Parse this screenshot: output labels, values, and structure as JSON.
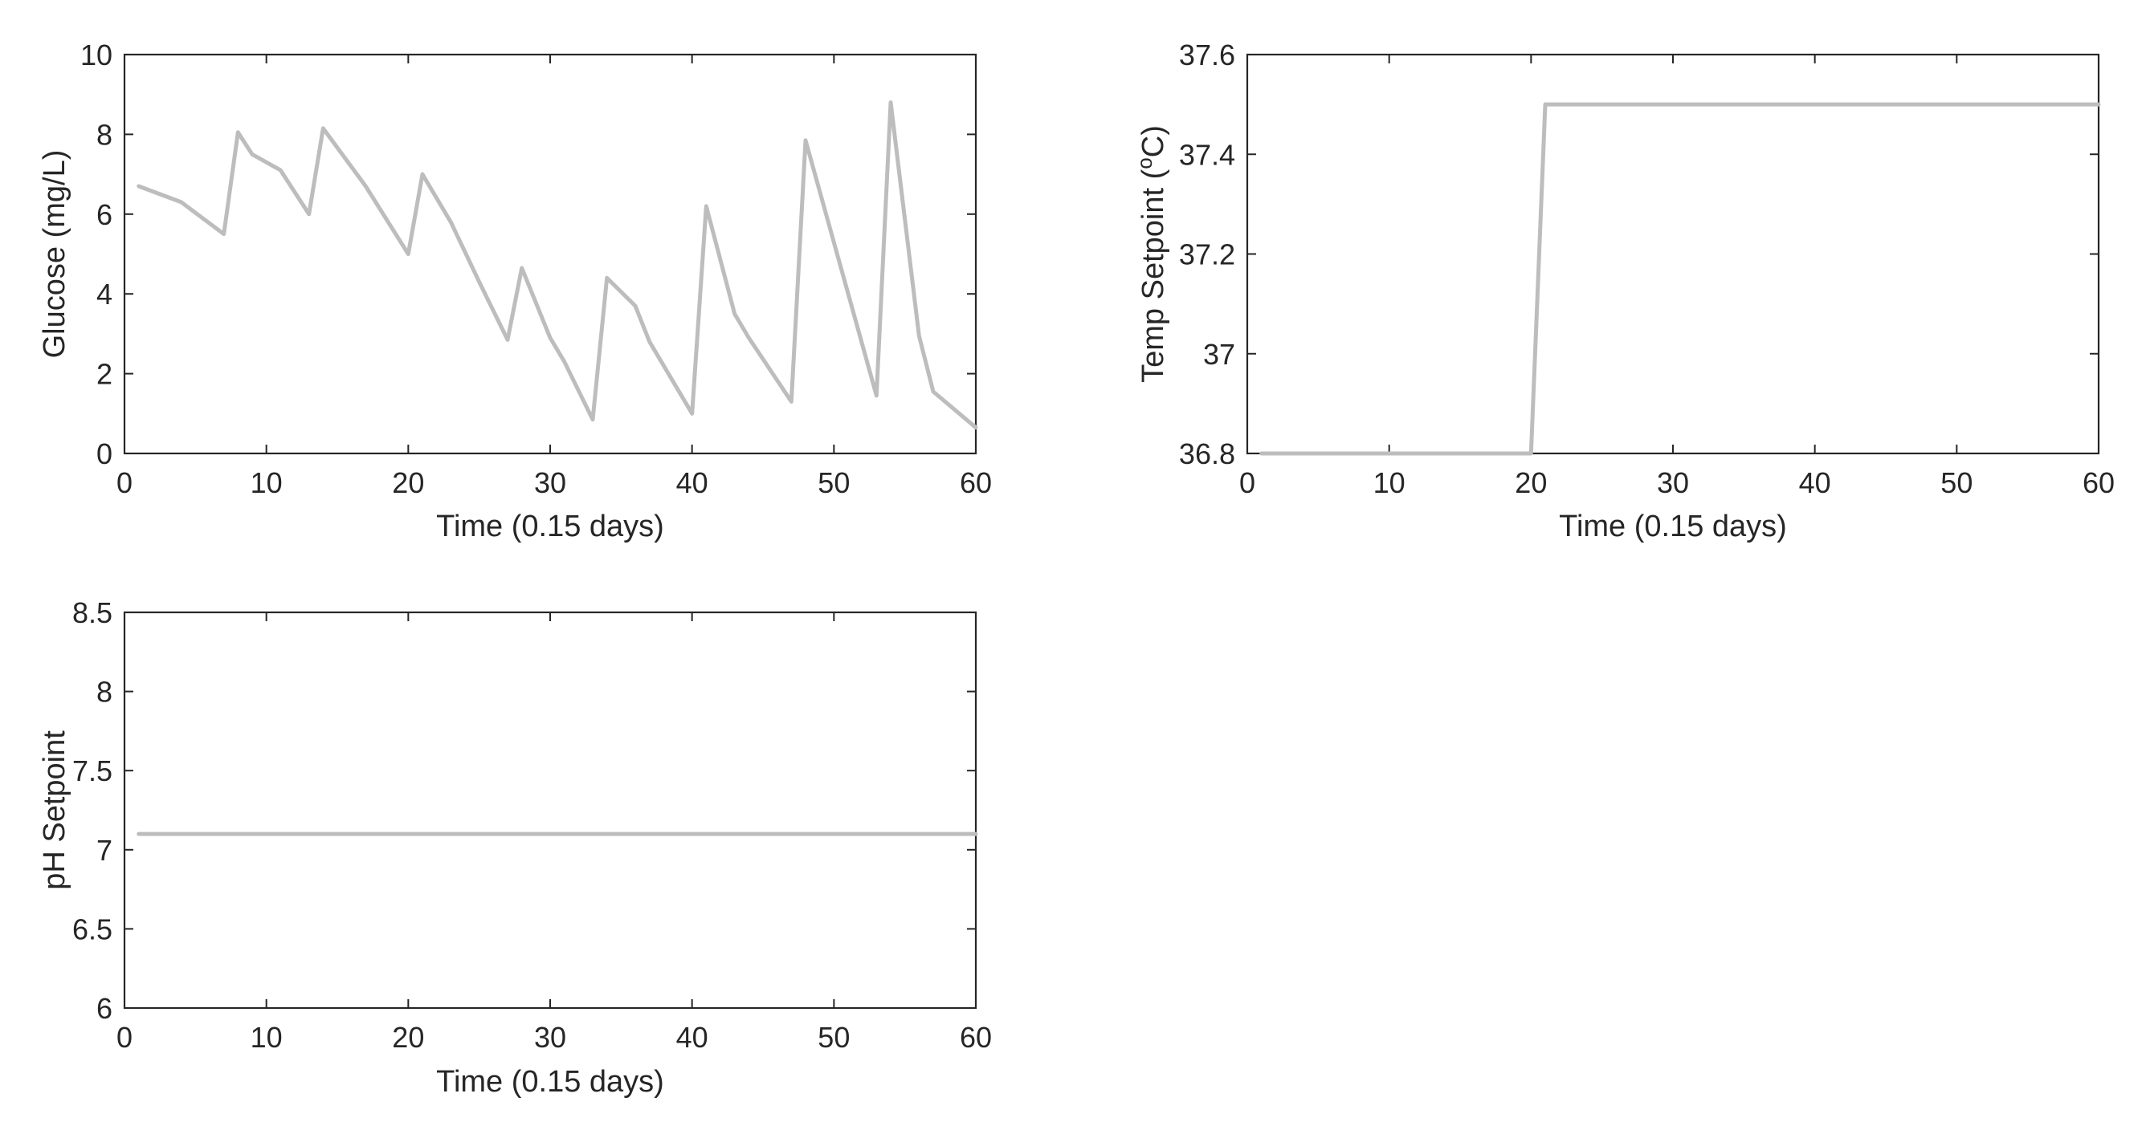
{
  "chart_data": [
    {
      "type": "line",
      "title": "",
      "xlabel": "Time (0.15 days)",
      "ylabel": "Glucose (mg/L)",
      "xlim": [
        0,
        60
      ],
      "ylim": [
        0,
        10
      ],
      "xticks": [
        0,
        10,
        20,
        30,
        40,
        50,
        60
      ],
      "yticks": [
        0,
        2,
        4,
        6,
        8,
        10
      ],
      "xtick_labels": [
        "0",
        "10",
        "20",
        "30",
        "40",
        "50",
        "60"
      ],
      "ytick_labels": [
        "0",
        "2",
        "4",
        "6",
        "8",
        "10"
      ],
      "grid": false,
      "series": [
        {
          "name": "Glucose",
          "color": "#bdbdbd",
          "x": [
            1,
            4,
            7,
            8,
            9,
            11,
            13,
            14,
            17,
            20,
            21,
            23,
            25,
            27,
            28,
            30,
            31,
            33,
            34,
            36,
            37,
            40,
            41,
            43,
            44,
            47,
            48,
            53,
            54,
            56,
            57,
            60
          ],
          "y": [
            6.7,
            6.3,
            5.5,
            8.05,
            7.5,
            7.1,
            6.0,
            8.15,
            6.7,
            5.0,
            7.0,
            5.8,
            4.3,
            2.85,
            4.65,
            2.9,
            2.3,
            0.85,
            4.4,
            3.7,
            2.8,
            1.0,
            6.2,
            3.5,
            2.9,
            1.3,
            7.85,
            1.45,
            8.8,
            2.95,
            1.55,
            0.65
          ]
        }
      ]
    },
    {
      "type": "line",
      "title": "",
      "xlabel": "Time (0.15 days)",
      "ylabel_main": "Temp Setpoint (",
      "ylabel_sup": "o",
      "ylabel_end": "C)",
      "xlim": [
        0,
        60
      ],
      "ylim": [
        36.8,
        37.6
      ],
      "xticks": [
        0,
        10,
        20,
        30,
        40,
        50,
        60
      ],
      "yticks": [
        36.8,
        37,
        37.2,
        37.4,
        37.6
      ],
      "xtick_labels": [
        "0",
        "10",
        "20",
        "30",
        "40",
        "50",
        "60"
      ],
      "ytick_labels": [
        "36.8",
        "37",
        "37.2",
        "37.4",
        "37.6"
      ],
      "grid": false,
      "series": [
        {
          "name": "Temp Setpoint",
          "color": "#bdbdbd",
          "x": [
            1,
            20,
            21,
            60
          ],
          "y": [
            36.8,
            36.8,
            37.5,
            37.5
          ]
        }
      ]
    },
    {
      "type": "line",
      "title": "",
      "xlabel": "Time (0.15 days)",
      "ylabel": "pH Setpoint",
      "xlim": [
        0,
        60
      ],
      "ylim": [
        6,
        8.5
      ],
      "xticks": [
        0,
        10,
        20,
        30,
        40,
        50,
        60
      ],
      "yticks": [
        6,
        6.5,
        7,
        7.5,
        8,
        8.5
      ],
      "xtick_labels": [
        "0",
        "10",
        "20",
        "30",
        "40",
        "50",
        "60"
      ],
      "ytick_labels": [
        "6",
        "6.5",
        "7",
        "7.5",
        "8",
        "8.5"
      ],
      "grid": false,
      "series": [
        {
          "name": "pH Setpoint",
          "color": "#bdbdbd",
          "x": [
            1,
            60
          ],
          "y": [
            7.1,
            7.1
          ]
        }
      ]
    }
  ]
}
